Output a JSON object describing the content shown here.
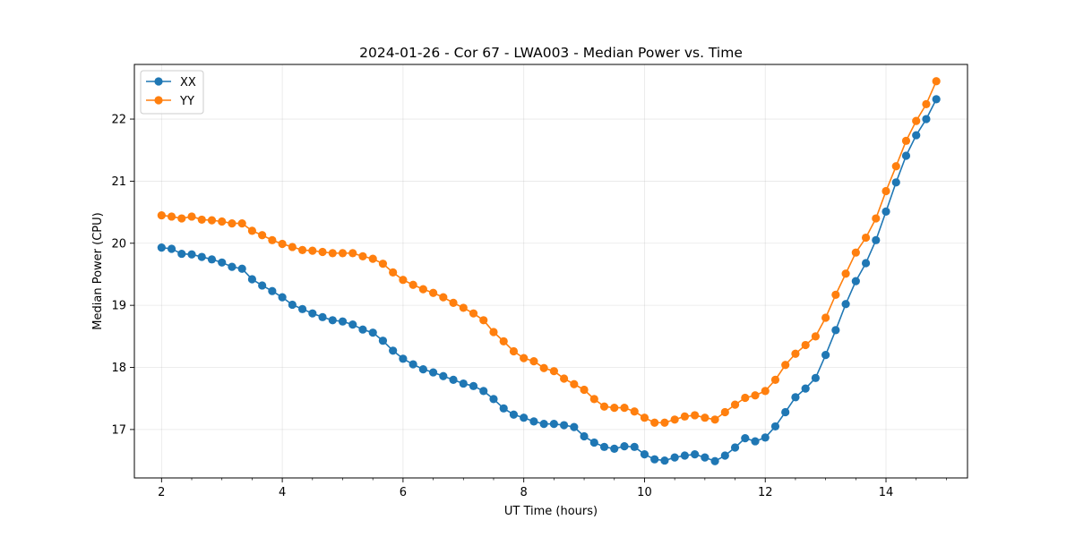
{
  "chart_data": {
    "type": "line",
    "title": "2024-01-26 - Cor 67 - LWA003 - Median Power vs. Time",
    "xlabel": "UT Time (hours)",
    "ylabel": "Median Power (CPU)",
    "xlim": [
      1.55,
      15.35
    ],
    "ylim": [
      16.22,
      22.88
    ],
    "xticks": [
      2,
      4,
      6,
      8,
      10,
      12,
      14
    ],
    "xtick_labels": [
      "2",
      "4",
      "6",
      "8",
      "10",
      "12",
      "14"
    ],
    "xminor_step": 0.5,
    "yticks": [
      17,
      18,
      19,
      20,
      21,
      22
    ],
    "ytick_labels": [
      "17",
      "18",
      "19",
      "20",
      "21",
      "22"
    ],
    "grid": true,
    "legend_position": "upper-left",
    "x": [
      2.0,
      2.1667,
      2.3333,
      2.5,
      2.6667,
      2.8333,
      3.0,
      3.1667,
      3.3333,
      3.5,
      3.6667,
      3.8333,
      4.0,
      4.1667,
      4.3333,
      4.5,
      4.6667,
      4.8333,
      5.0,
      5.1667,
      5.3333,
      5.5,
      5.6667,
      5.8333,
      6.0,
      6.1667,
      6.3333,
      6.5,
      6.6667,
      6.8333,
      7.0,
      7.1667,
      7.3333,
      7.5,
      7.6667,
      7.8333,
      8.0,
      8.1667,
      8.3333,
      8.5,
      8.6667,
      8.8333,
      9.0,
      9.1667,
      9.3333,
      9.5,
      9.6667,
      9.8333,
      10.0,
      10.1667,
      10.3333,
      10.5,
      10.6667,
      10.8333,
      11.0,
      11.1667,
      11.3333,
      11.5,
      11.6667,
      11.8333,
      12.0,
      12.1667,
      12.3333,
      12.5,
      12.6667,
      12.8333,
      13.0,
      13.1667,
      13.3333,
      13.5,
      13.6667,
      13.8333,
      14.0,
      14.1667,
      14.3333,
      14.5,
      14.6667,
      14.8333
    ],
    "series": [
      {
        "name": "XX",
        "color": "#1f77b4",
        "values": [
          19.93,
          19.91,
          19.83,
          19.82,
          19.78,
          19.74,
          19.69,
          19.62,
          19.59,
          19.42,
          19.32,
          19.23,
          19.13,
          19.01,
          18.94,
          18.87,
          18.81,
          18.76,
          18.74,
          18.69,
          18.61,
          18.56,
          18.43,
          18.27,
          18.14,
          18.05,
          17.97,
          17.92,
          17.86,
          17.8,
          17.74,
          17.7,
          17.62,
          17.49,
          17.34,
          17.24,
          17.19,
          17.13,
          17.09,
          17.09,
          17.07,
          17.04,
          16.89,
          16.79,
          16.72,
          16.69,
          16.73,
          16.72,
          16.6,
          16.52,
          16.5,
          16.55,
          16.58,
          16.6,
          16.55,
          16.49,
          16.58,
          16.71,
          16.86,
          16.81,
          16.87,
          17.05,
          17.28,
          17.52,
          17.66,
          17.83,
          18.2,
          18.6,
          19.02,
          19.39,
          19.68,
          20.05,
          20.51,
          20.98,
          21.41,
          21.74,
          22.0,
          22.32
        ]
      },
      {
        "name": "YY",
        "color": "#ff7f0e",
        "values": [
          20.45,
          20.43,
          20.4,
          20.43,
          20.38,
          20.37,
          20.35,
          20.32,
          20.32,
          20.2,
          20.13,
          20.05,
          19.99,
          19.94,
          19.89,
          19.88,
          19.86,
          19.84,
          19.84,
          19.84,
          19.79,
          19.75,
          19.67,
          19.53,
          19.41,
          19.33,
          19.26,
          19.2,
          19.13,
          19.04,
          18.96,
          18.87,
          18.76,
          18.57,
          18.42,
          18.26,
          18.15,
          18.1,
          17.99,
          17.94,
          17.82,
          17.73,
          17.64,
          17.49,
          17.37,
          17.35,
          17.35,
          17.29,
          17.19,
          17.11,
          17.11,
          17.16,
          17.21,
          17.23,
          17.19,
          17.16,
          17.28,
          17.4,
          17.51,
          17.55,
          17.62,
          17.8,
          18.04,
          18.22,
          18.36,
          18.5,
          18.8,
          19.17,
          19.51,
          19.85,
          20.09,
          20.4,
          20.84,
          21.24,
          21.65,
          21.97,
          22.24,
          22.61
        ]
      }
    ]
  }
}
